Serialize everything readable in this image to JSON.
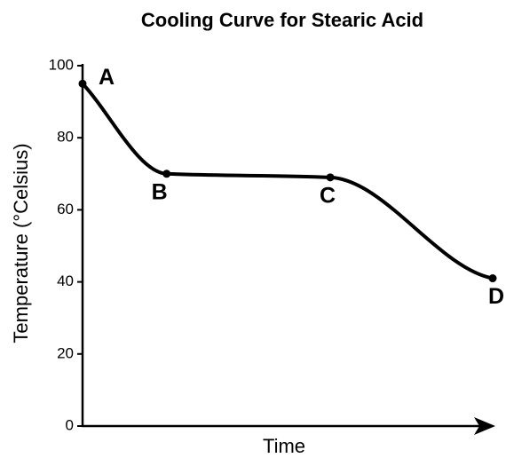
{
  "chart_data": {
    "type": "line",
    "title": "Cooling Curve for Stearic Acid",
    "xlabel": "Time",
    "ylabel": "Temperature (°Celsius)",
    "x": [
      0,
      20.5,
      60.4,
      100
    ],
    "values": [
      95,
      70,
      69,
      41
    ],
    "point_labels": [
      "A",
      "B",
      "C",
      "D"
    ],
    "color": "#000000",
    "xlim": [
      0,
      100
    ],
    "ylim": [
      0,
      100
    ],
    "yticks": [
      0,
      20,
      40,
      60,
      80,
      100
    ],
    "grid": false
  }
}
